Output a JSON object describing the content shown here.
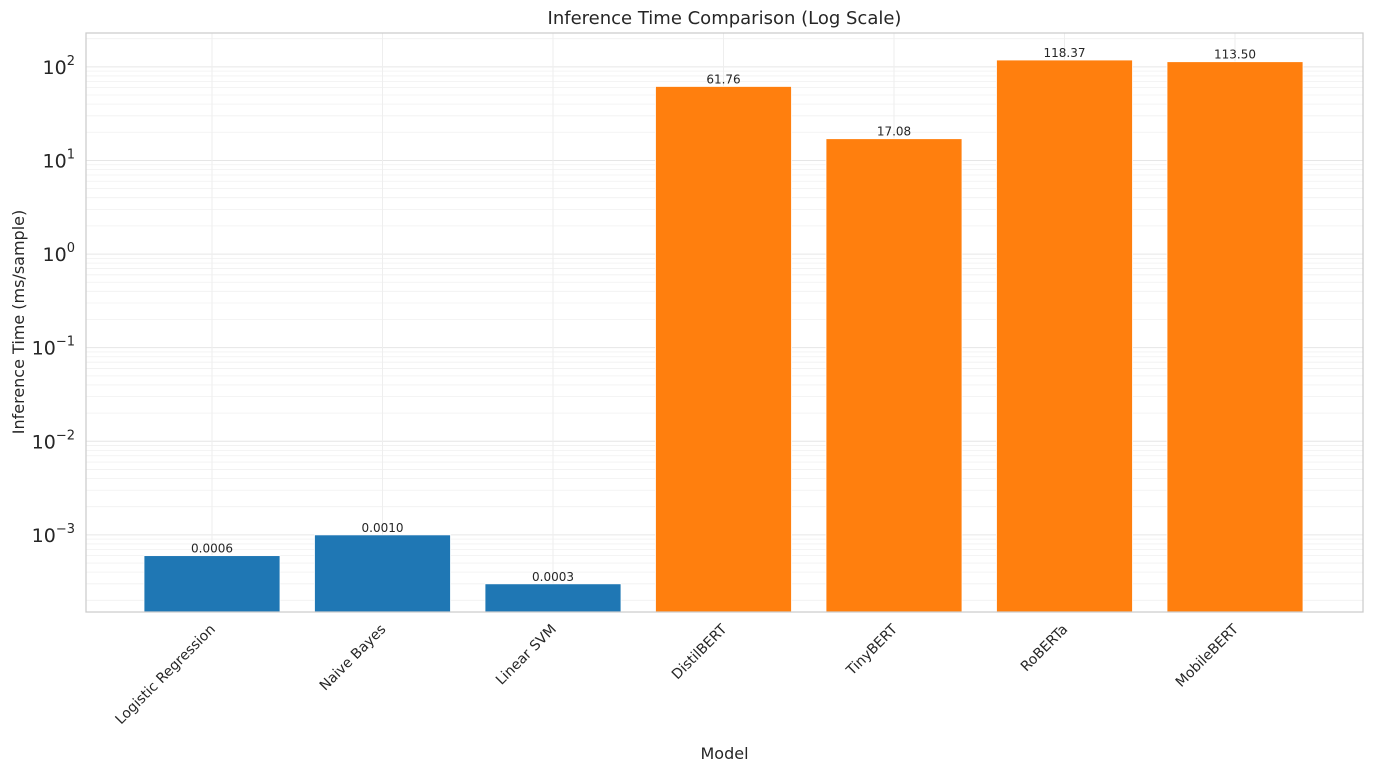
{
  "chart_data": {
    "type": "bar",
    "title": "Inference Time Comparison (Log Scale)",
    "xlabel": "Model",
    "ylabel": "Inference Time (ms/sample)",
    "yscale": "log",
    "ylim": [
      0.00015,
      230
    ],
    "grid": true,
    "categories": [
      "Logistic Regression",
      "Naive Bayes",
      "Linear SVM",
      "DistilBERT",
      "TinyBERT",
      "RoBERTa",
      "MobileBERT"
    ],
    "values": [
      0.0006,
      0.001,
      0.0003,
      61.76,
      17.08,
      118.37,
      113.5
    ],
    "value_labels": [
      "0.0006",
      "0.0010",
      "0.0003",
      "61.76",
      "17.08",
      "118.37",
      "113.50"
    ],
    "bar_colors": [
      "#1f77b4",
      "#1f77b4",
      "#1f77b4",
      "#ff7f0e",
      "#ff7f0e",
      "#ff7f0e",
      "#ff7f0e"
    ],
    "yticks": [
      {
        "value": 0.001,
        "base": "10",
        "exp": "−3"
      },
      {
        "value": 0.01,
        "base": "10",
        "exp": "−2"
      },
      {
        "value": 0.1,
        "base": "10",
        "exp": "−1"
      },
      {
        "value": 1,
        "base": "10",
        "exp": "0"
      },
      {
        "value": 10,
        "base": "10",
        "exp": "1"
      },
      {
        "value": 100,
        "base": "10",
        "exp": "2"
      }
    ]
  }
}
